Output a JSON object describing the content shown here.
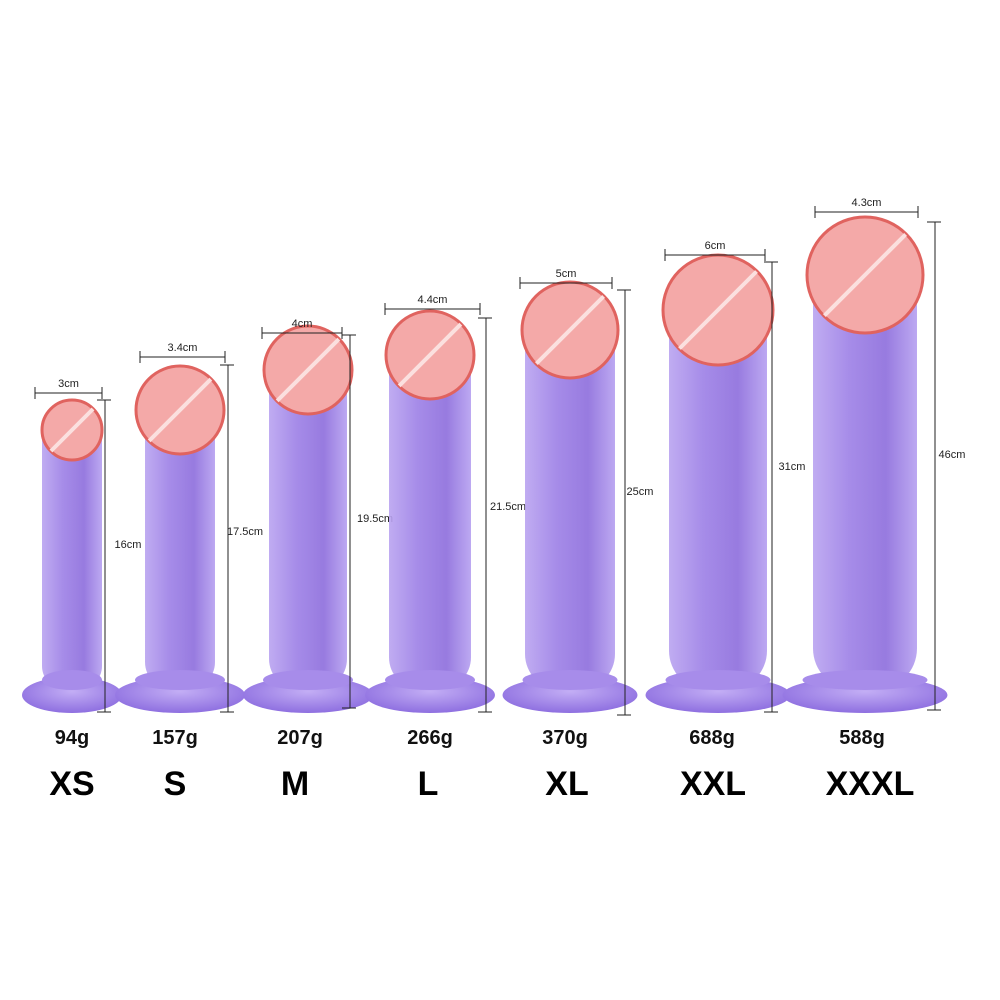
{
  "items": [
    {
      "width": "3cm",
      "length": "16cm",
      "weight": "94g",
      "size": "XS"
    },
    {
      "width": "3.4cm",
      "length": "17.5cm",
      "weight": "157g",
      "size": "S"
    },
    {
      "width": "4cm",
      "length": "19.5cm",
      "weight": "207g",
      "size": "M"
    },
    {
      "width": "4.4cm",
      "length": "21.5cm",
      "weight": "266g",
      "size": "L"
    },
    {
      "width": "5cm",
      "length": "25cm",
      "weight": "370g",
      "size": "XL"
    },
    {
      "width": "6cm",
      "length": "31cm",
      "weight": "688g",
      "size": "XXL"
    },
    {
      "width": "4.3cm",
      "length": "46cm",
      "weight": "588g",
      "size": "XXXL"
    }
  ]
}
